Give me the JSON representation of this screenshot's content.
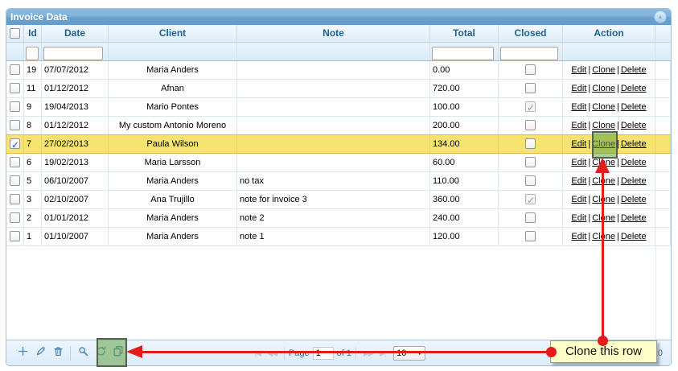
{
  "window": {
    "title": "Invoice Data",
    "collapse_icon": "collapse-up"
  },
  "table": {
    "columns": [
      {
        "key": "select",
        "label": "",
        "has_filter": false
      },
      {
        "key": "id",
        "label": "Id",
        "has_filter": true
      },
      {
        "key": "date",
        "label": "Date",
        "has_filter": true
      },
      {
        "key": "client",
        "label": "Client",
        "has_filter": false
      },
      {
        "key": "note",
        "label": "Note",
        "has_filter": false
      },
      {
        "key": "total",
        "label": "Total",
        "has_filter": true
      },
      {
        "key": "closed",
        "label": "Closed",
        "has_filter": true
      },
      {
        "key": "action",
        "label": "Action",
        "has_filter": false
      },
      {
        "key": "filler",
        "label": "",
        "has_filter": false
      }
    ],
    "actions": [
      "Edit",
      "Clone",
      "Delete"
    ],
    "action_separator": "|",
    "rows": [
      {
        "id": "19",
        "date": "07/07/2012",
        "client": "Maria Anders",
        "note": "",
        "total": "0.00",
        "closed": false,
        "selected": false,
        "highlighted": false
      },
      {
        "id": "11",
        "date": "01/12/2012",
        "client": "Afnan",
        "note": "",
        "total": "720.00",
        "closed": false,
        "selected": false,
        "highlighted": false
      },
      {
        "id": "9",
        "date": "19/04/2013",
        "client": "Mario Pontes",
        "note": "",
        "total": "100.00",
        "closed": true,
        "selected": false,
        "highlighted": false
      },
      {
        "id": "8",
        "date": "01/12/2012",
        "client": "My custom Antonio Moreno",
        "note": "",
        "total": "200.00",
        "closed": false,
        "selected": false,
        "highlighted": false
      },
      {
        "id": "7",
        "date": "27/02/2013",
        "client": "Paula Wilson",
        "note": "",
        "total": "134.00",
        "closed": false,
        "selected": true,
        "highlighted": true
      },
      {
        "id": "6",
        "date": "19/02/2013",
        "client": "Maria Larsson",
        "note": "",
        "total": "60.00",
        "closed": false,
        "selected": false,
        "highlighted": false
      },
      {
        "id": "5",
        "date": "06/10/2007",
        "client": "Maria Anders",
        "note": "no tax",
        "total": "110.00",
        "closed": false,
        "selected": false,
        "highlighted": false
      },
      {
        "id": "3",
        "date": "02/10/2007",
        "client": "Ana Trujillo",
        "note": "note for invoice 3",
        "total": "360.00",
        "closed": true,
        "selected": false,
        "highlighted": false
      },
      {
        "id": "2",
        "date": "01/01/2012",
        "client": "Maria Anders",
        "note": "note 2",
        "total": "240.00",
        "closed": false,
        "selected": false,
        "highlighted": false
      },
      {
        "id": "1",
        "date": "01/10/2007",
        "client": "Maria Anders",
        "note": "note 1",
        "total": "120.00",
        "closed": false,
        "selected": false,
        "highlighted": false
      }
    ]
  },
  "toolbar": {
    "buttons": [
      {
        "name": "add",
        "icon": "plus-icon"
      },
      {
        "name": "edit",
        "icon": "pencil-icon"
      },
      {
        "name": "delete",
        "icon": "trash-icon"
      },
      {
        "name": "search",
        "icon": "magnifier-icon"
      },
      {
        "name": "refresh",
        "icon": "refresh-icon"
      },
      {
        "name": "clone",
        "icon": "copy-icon",
        "highlighted": true
      }
    ]
  },
  "pager": {
    "page_label": "Page",
    "current_page": "1",
    "of_label": "of 1",
    "page_size": "10",
    "right_info": "10"
  },
  "annotation": {
    "tooltip_text": "Clone this row",
    "highlighted_row_id": "7",
    "highlighted_action": "Clone",
    "green_color": "#65a346",
    "red_color": "#e41b1b",
    "tooltip_bg": "#ffffc8"
  },
  "colors": {
    "title_bar": "#6ba4d0",
    "header_text": "#1b6394",
    "row_highlight": "#f7e470",
    "link": "#000000"
  }
}
